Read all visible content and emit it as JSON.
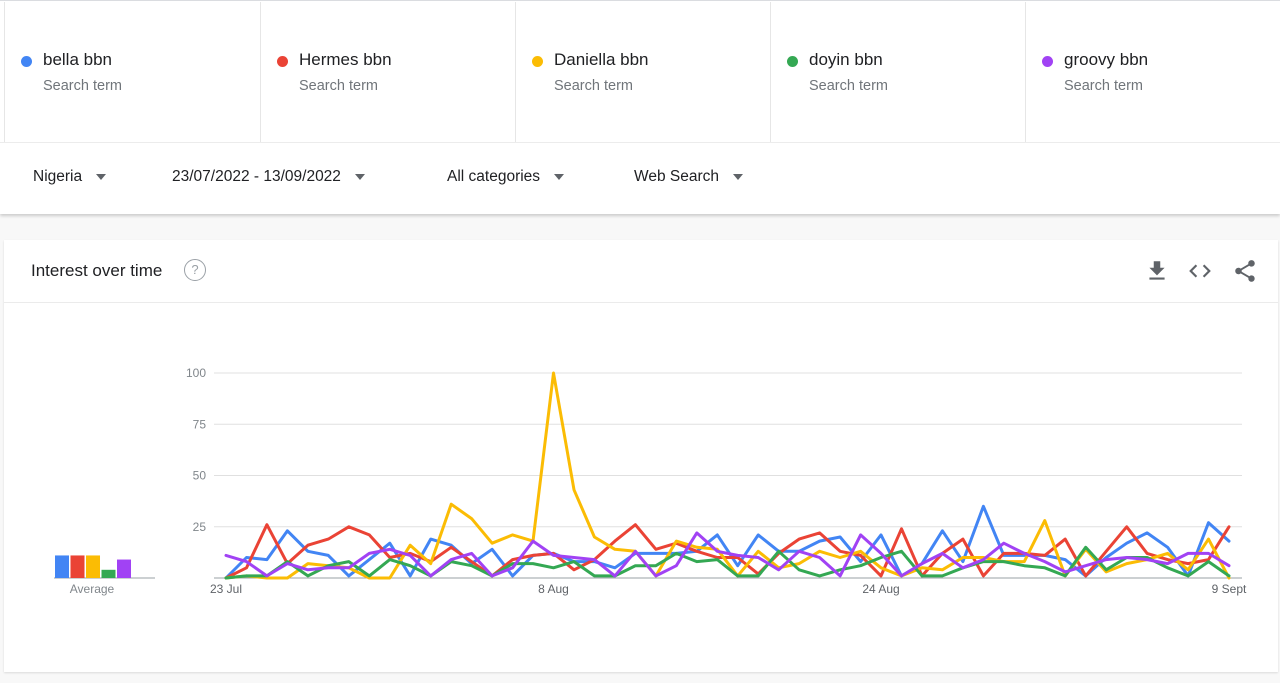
{
  "search_terms": [
    {
      "name": "bella bbn",
      "sub": "Search term",
      "color": "#4285f4"
    },
    {
      "name": "Hermes bbn",
      "sub": "Search term",
      "color": "#ea4335"
    },
    {
      "name": "Daniella bbn",
      "sub": "Search term",
      "color": "#fbbc04"
    },
    {
      "name": "doyin bbn",
      "sub": "Search term",
      "color": "#34a853"
    },
    {
      "name": "groovy bbn",
      "sub": "Search term",
      "color": "#a142f4"
    }
  ],
  "filters": {
    "region": "Nigeria",
    "date_range": "23/07/2022 - 13/09/2022",
    "category": "All categories",
    "search_type": "Web Search"
  },
  "card": {
    "title": "Interest over time",
    "help_icon": "help-circle-icon",
    "actions": [
      "download-icon",
      "embed-code-icon",
      "share-icon"
    ]
  },
  "chart_data": {
    "type": "line",
    "ylim": [
      0,
      100
    ],
    "yticks": [
      25,
      50,
      75,
      100
    ],
    "x_tick_labels": [
      {
        "index": 0,
        "label": "23 Jul"
      },
      {
        "index": 16,
        "label": "8 Aug"
      },
      {
        "index": 32,
        "label": "24 Aug"
      },
      {
        "index": 49,
        "label": "9 Sept"
      }
    ],
    "average_label": "Average",
    "averages": [
      11,
      11,
      11,
      4,
      9
    ],
    "series": [
      {
        "name": "bella bbn",
        "color": "#4285f4",
        "values": [
          0,
          10,
          9,
          23,
          13,
          11,
          1,
          9,
          17,
          1,
          19,
          16,
          7,
          14,
          1,
          11,
          12,
          8,
          8,
          5,
          12,
          12,
          12,
          13,
          21,
          6,
          21,
          13,
          13,
          18,
          20,
          8,
          21,
          1,
          7,
          23,
          8,
          35,
          11,
          11,
          11,
          9,
          1,
          10,
          17,
          22,
          15,
          1,
          27,
          18
        ]
      },
      {
        "name": "Hermes bbn",
        "color": "#ea4335",
        "values": [
          0,
          5,
          26,
          7,
          16,
          19,
          25,
          21,
          10,
          12,
          8,
          15,
          8,
          1,
          9,
          11,
          12,
          4,
          9,
          18,
          26,
          14,
          17,
          13,
          10,
          10,
          2,
          12,
          19,
          22,
          13,
          11,
          1,
          24,
          1,
          12,
          19,
          1,
          12,
          12,
          11,
          19,
          1,
          13,
          25,
          12,
          9,
          7,
          9,
          25
        ]
      },
      {
        "name": "Daniella bbn",
        "color": "#fbbc04",
        "values": [
          0,
          1,
          0,
          0,
          7,
          6,
          5,
          0,
          0,
          16,
          7,
          36,
          29,
          17,
          21,
          18,
          100,
          43,
          20,
          14,
          13,
          1,
          18,
          15,
          14,
          1,
          13,
          5,
          7,
          13,
          10,
          13,
          5,
          1,
          5,
          4,
          10,
          10,
          8,
          8,
          28,
          1,
          14,
          3,
          7,
          9,
          12,
          4,
          19,
          0
        ]
      },
      {
        "name": "doyin bbn",
        "color": "#34a853",
        "values": [
          0,
          1,
          1,
          8,
          1,
          6,
          8,
          1,
          9,
          6,
          1,
          8,
          6,
          1,
          7,
          7,
          5,
          8,
          1,
          1,
          6,
          6,
          12,
          8,
          9,
          1,
          1,
          13,
          4,
          1,
          4,
          6,
          10,
          13,
          1,
          1,
          5,
          8,
          8,
          6,
          5,
          1,
          15,
          4,
          10,
          10,
          5,
          1,
          8,
          1
        ]
      },
      {
        "name": "groovy bbn",
        "color": "#a142f4",
        "values": [
          11,
          8,
          1,
          7,
          4,
          5,
          5,
          12,
          14,
          11,
          1,
          9,
          12,
          1,
          5,
          18,
          11,
          10,
          9,
          1,
          13,
          1,
          6,
          22,
          13,
          11,
          10,
          4,
          13,
          10,
          1,
          21,
          12,
          1,
          7,
          12,
          5,
          9,
          17,
          12,
          8,
          3,
          6,
          9,
          10,
          9,
          7,
          12,
          12,
          6
        ]
      }
    ]
  }
}
